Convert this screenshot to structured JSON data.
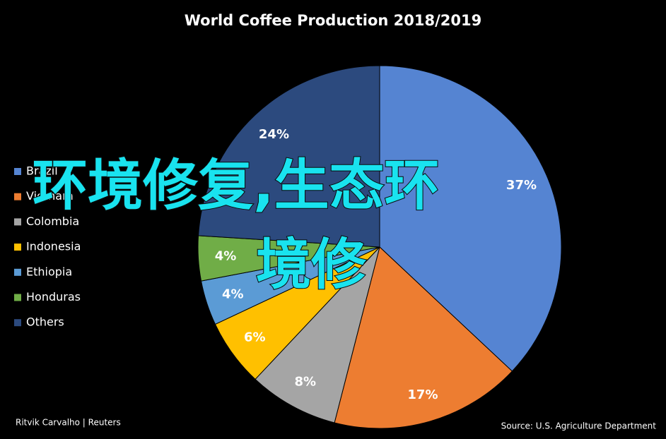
{
  "chart_data": {
    "type": "pie",
    "title": "World Coffee Production 2018/2019",
    "categories": [
      "Brazil",
      "Vietnam",
      "Colombia",
      "Indonesia",
      "Ethiopia",
      "Honduras",
      "Others"
    ],
    "values": [
      37,
      17,
      8,
      6,
      4,
      4,
      24
    ],
    "value_labels": [
      "37%",
      "17%",
      "8%",
      "6%",
      "4%",
      "4%",
      "24%"
    ],
    "colors": [
      "#5584d2",
      "#ed7d31",
      "#a5a5a5",
      "#ffc000",
      "#5b9bd5",
      "#70ad47",
      "#2c4a7e"
    ],
    "legend": "left",
    "credit": "Ritvik Carvalho | Reuters",
    "source": "Source: U.S. Agriculture Department"
  },
  "overlay": [
    "环境修复,生态环",
    "境修"
  ]
}
